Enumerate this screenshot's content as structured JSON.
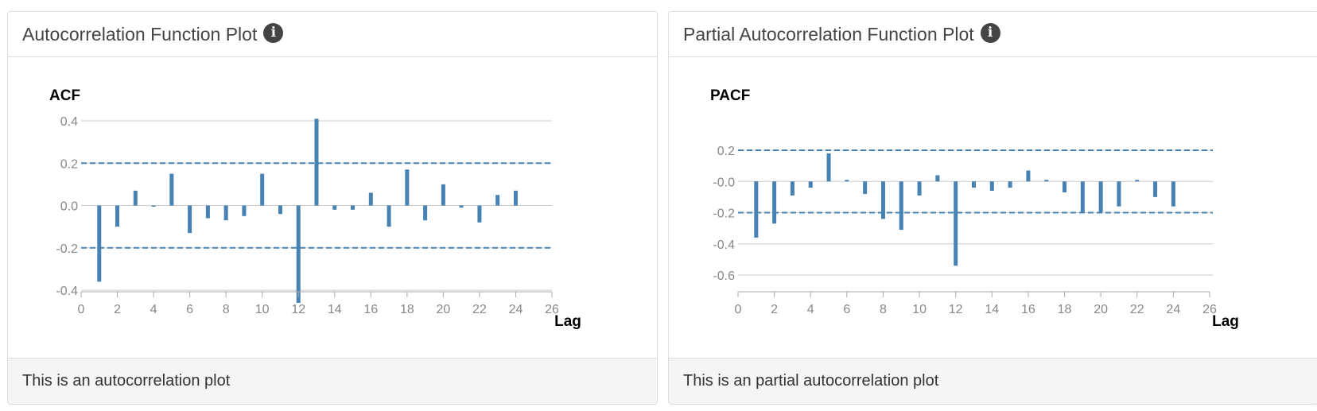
{
  "panels": [
    {
      "title": "Autocorrelation Function Plot",
      "info_icon": "info-circle-icon",
      "footer": "This is an autocorrelation plot"
    },
    {
      "title": "Partial Autocorrelation Function Plot",
      "info_icon": "info-circle-icon",
      "footer": "This is an partial autocorrelation plot"
    }
  ],
  "chart_data": [
    {
      "type": "bar",
      "title": "ACF",
      "xlabel": "Lag",
      "ylabel": "",
      "x": [
        1,
        2,
        3,
        4,
        5,
        6,
        7,
        8,
        9,
        10,
        11,
        12,
        13,
        14,
        15,
        16,
        17,
        18,
        19,
        20,
        21,
        22,
        23,
        24
      ],
      "values": [
        -0.36,
        -0.1,
        0.07,
        0.0,
        0.15,
        -0.13,
        -0.06,
        -0.07,
        -0.05,
        0.15,
        -0.04,
        -0.46,
        0.41,
        -0.02,
        -0.02,
        0.06,
        -0.1,
        0.17,
        -0.07,
        0.1,
        -0.01,
        -0.08,
        0.05,
        0.07
      ],
      "confidence_band": [
        -0.2,
        0.2
      ],
      "xlim": [
        0,
        26
      ],
      "ylim": [
        -0.6,
        0.4
      ],
      "xticks": [
        0,
        2,
        4,
        6,
        8,
        10,
        12,
        14,
        16,
        18,
        20,
        22,
        24,
        26
      ],
      "yticks": [
        0.4,
        0.2,
        0.0,
        -0.2,
        -0.4
      ],
      "ytick_labels": [
        "0.4",
        "0.2",
        "0.0",
        "-0.2",
        "-0.4"
      ],
      "grid": true,
      "bar_color": "#4682b4"
    },
    {
      "type": "bar",
      "title": "PACF",
      "xlabel": "Lag",
      "ylabel": "",
      "x": [
        1,
        2,
        3,
        4,
        5,
        6,
        7,
        8,
        9,
        10,
        11,
        12,
        13,
        14,
        15,
        16,
        17,
        18,
        19,
        20,
        21,
        22,
        23,
        24
      ],
      "values": [
        -0.36,
        -0.27,
        -0.09,
        -0.04,
        0.18,
        0.01,
        -0.08,
        -0.24,
        -0.31,
        -0.09,
        0.04,
        -0.54,
        -0.04,
        -0.06,
        -0.04,
        0.07,
        0.01,
        -0.07,
        -0.2,
        -0.2,
        -0.16,
        0.01,
        -0.1,
        -0.16
      ],
      "confidence_band": [
        -0.2,
        0.2
      ],
      "xlim": [
        0,
        26
      ],
      "ylim": [
        -0.7,
        0.2
      ],
      "xticks": [
        0,
        2,
        4,
        6,
        8,
        10,
        12,
        14,
        16,
        18,
        20,
        22,
        24,
        26
      ],
      "yticks": [
        0.2,
        0.0,
        -0.2,
        -0.4,
        -0.6
      ],
      "ytick_labels": [
        "0.2",
        "-0.0",
        "-0.2",
        "-0.4",
        "-0.6"
      ],
      "grid": true,
      "bar_color": "#4682b4"
    }
  ]
}
